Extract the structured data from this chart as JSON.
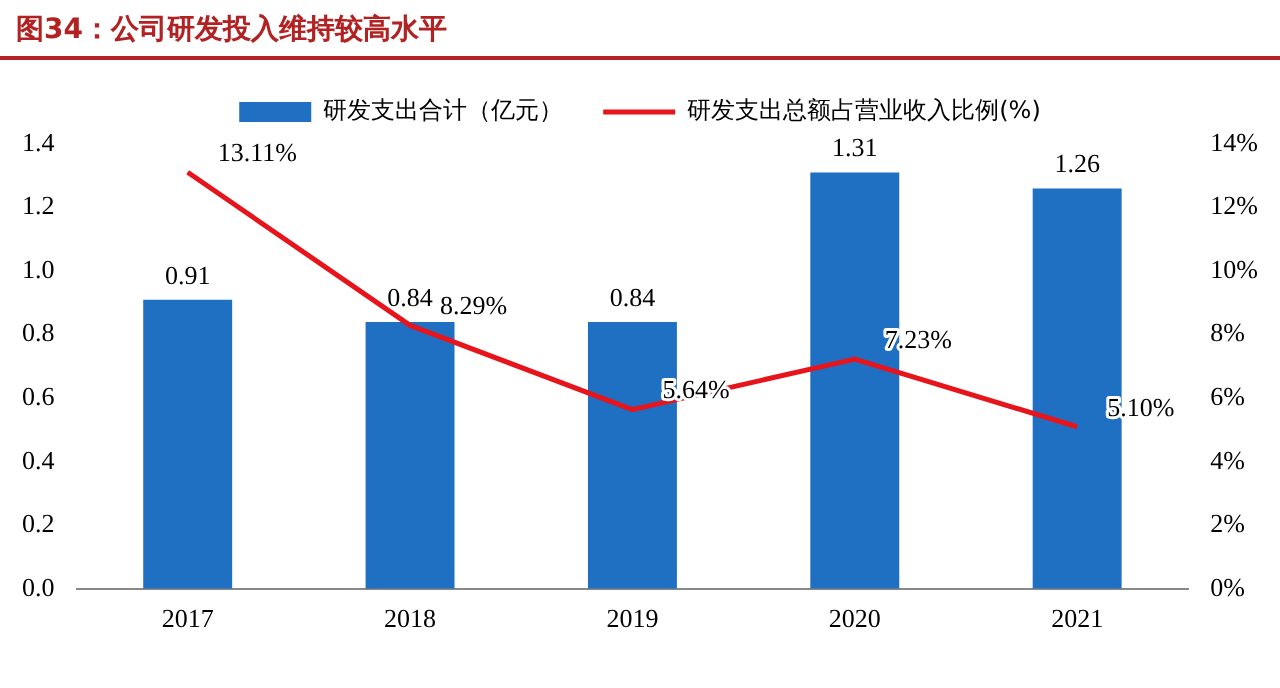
{
  "chart_data": {
    "type": "bar",
    "title": "图34：公司研发投入维持较高水平",
    "categories": [
      "2017",
      "2018",
      "2019",
      "2020",
      "2021"
    ],
    "series": [
      {
        "name": "研发支出合计（亿元）",
        "color": "#1f6fc2",
        "values": [
          0.91,
          0.84,
          0.84,
          1.31,
          1.26
        ],
        "value_labels": [
          "0.91",
          "0.84",
          "0.84",
          "1.31",
          "1.26"
        ]
      },
      {
        "name": "研发支出总额占营业收入比例(%)",
        "type": "line",
        "axis": "y2",
        "color": "#e8141c",
        "values": [
          13.11,
          8.29,
          5.64,
          7.23,
          5.1
        ],
        "value_labels": [
          "13.11%",
          "8.29%",
          "5.64%",
          "7.23%",
          "5.10%"
        ]
      }
    ],
    "ylim": [
      0,
      1.4
    ],
    "yticks": [
      {
        "value": 0,
        "label": "0.0"
      },
      {
        "value": 0.2,
        "label": "0.2"
      },
      {
        "value": 0.4,
        "label": "0.4"
      },
      {
        "value": 0.6,
        "label": "0.6"
      },
      {
        "value": 0.8,
        "label": "0.8"
      },
      {
        "value": 1,
        "label": "1.0"
      },
      {
        "value": 1.2,
        "label": "1.2"
      },
      {
        "value": 1.4,
        "label": "1.4"
      }
    ],
    "y2lim": [
      0,
      14
    ],
    "y2ticks": [
      {
        "value": 0,
        "label": "0%"
      },
      {
        "value": 2,
        "label": "2%"
      },
      {
        "value": 4,
        "label": "4%"
      },
      {
        "value": 6,
        "label": "6%"
      },
      {
        "value": 8,
        "label": "8%"
      },
      {
        "value": 10,
        "label": "10%"
      },
      {
        "value": 12,
        "label": "12%"
      },
      {
        "value": 14,
        "label": "14%"
      }
    ],
    "grid": false,
    "legend": "top",
    "marker": "none",
    "line_style": "solid"
  }
}
